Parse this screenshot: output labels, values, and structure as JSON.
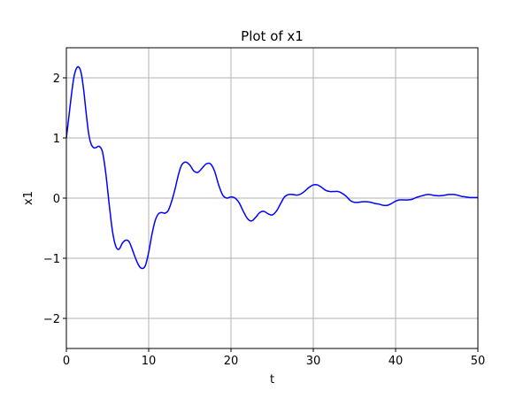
{
  "chart_data": {
    "type": "line",
    "title": "Plot of x1",
    "xlabel": "t",
    "ylabel": "x1",
    "xlim": [
      0,
      50
    ],
    "ylim": [
      -2.5,
      2.5
    ],
    "xticks": [
      0,
      10,
      20,
      30,
      40,
      50
    ],
    "xtick_labels": [
      "0",
      "10",
      "20",
      "30",
      "40",
      "50"
    ],
    "yticks": [
      -2,
      -1,
      0,
      1,
      2
    ],
    "ytick_labels": [
      "−2",
      "−1",
      "0",
      "1",
      "2"
    ],
    "grid": true,
    "series": [
      {
        "color": "#0000ff",
        "x": [
          0,
          0.3,
          0.6,
          0.9,
          1.2,
          1.5,
          1.8,
          2.1,
          2.4,
          2.7,
          3.0,
          3.3,
          3.6,
          4.0,
          4.4,
          4.8,
          5.2,
          5.6,
          6.0,
          6.4,
          6.8,
          7.2,
          7.6,
          8.0,
          8.4,
          8.8,
          9.2,
          9.6,
          10.0,
          10.4,
          10.8,
          11.2,
          11.6,
          12.0,
          12.4,
          12.8,
          13.2,
          13.6,
          14.0,
          14.5,
          15.0,
          15.5,
          16.0,
          16.5,
          17.0,
          17.5,
          18.0,
          18.5,
          19.0,
          19.5,
          20.0,
          20.5,
          21.0,
          21.5,
          22.0,
          22.5,
          23.0,
          23.5,
          24.0,
          24.5,
          25.0,
          25.5,
          26.0,
          26.5,
          27.0,
          27.5,
          28.0,
          28.5,
          29.0,
          29.5,
          30.0,
          30.5,
          31.0,
          31.5,
          32.0,
          32.5,
          33.0,
          33.5,
          34.0,
          34.5,
          35.0,
          35.5,
          36.0,
          36.5,
          37.0,
          37.5,
          38.0,
          38.5,
          39.0,
          39.5,
          40.0,
          40.5,
          41.0,
          41.5,
          42.0,
          42.5,
          43.0,
          43.5,
          44.0,
          44.5,
          45.0,
          45.5,
          46.0,
          46.5,
          47.0,
          47.5,
          48.0,
          48.5,
          49.0,
          49.5,
          50.0
        ],
        "y": [
          1.0,
          1.35,
          1.7,
          2.0,
          2.15,
          2.18,
          2.08,
          1.8,
          1.42,
          1.08,
          0.9,
          0.84,
          0.84,
          0.86,
          0.76,
          0.4,
          -0.1,
          -0.55,
          -0.8,
          -0.85,
          -0.75,
          -0.7,
          -0.72,
          -0.85,
          -1.0,
          -1.12,
          -1.17,
          -1.12,
          -0.9,
          -0.6,
          -0.37,
          -0.26,
          -0.24,
          -0.25,
          -0.2,
          -0.05,
          0.15,
          0.38,
          0.55,
          0.6,
          0.55,
          0.45,
          0.43,
          0.5,
          0.57,
          0.57,
          0.45,
          0.22,
          0.05,
          0.0,
          0.02,
          0.0,
          -0.08,
          -0.22,
          -0.34,
          -0.38,
          -0.32,
          -0.24,
          -0.22,
          -0.26,
          -0.28,
          -0.22,
          -0.1,
          0.02,
          0.06,
          0.06,
          0.05,
          0.07,
          0.12,
          0.18,
          0.22,
          0.22,
          0.18,
          0.13,
          0.11,
          0.11,
          0.11,
          0.08,
          0.03,
          -0.04,
          -0.07,
          -0.07,
          -0.06,
          -0.06,
          -0.07,
          -0.09,
          -0.1,
          -0.12,
          -0.12,
          -0.09,
          -0.05,
          -0.03,
          -0.03,
          -0.03,
          -0.02,
          0.01,
          0.03,
          0.05,
          0.06,
          0.05,
          0.04,
          0.04,
          0.05,
          0.06,
          0.06,
          0.05,
          0.03,
          0.02,
          0.01,
          0.01,
          0.01
        ]
      }
    ]
  }
}
